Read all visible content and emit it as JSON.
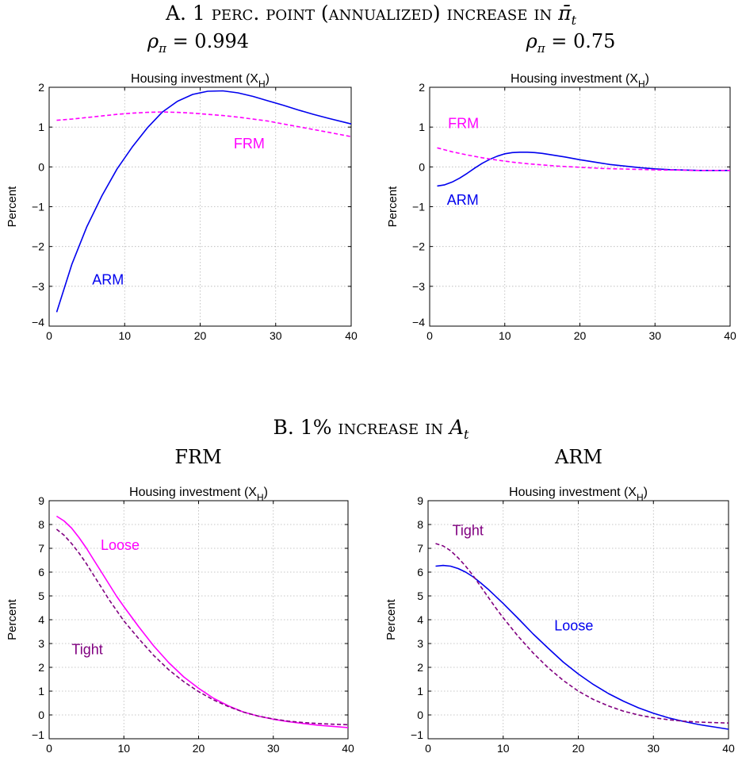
{
  "panel_a": {
    "title_prefix": "A. 1 ",
    "title_sc": "perc. point (annualized) increase in ",
    "title_symbol": "π̄",
    "title_sub": "t",
    "left_sub_rho": "ρ",
    "left_sub_index": "π",
    "left_sub_value": " = 0.994",
    "right_sub_rho": "ρ",
    "right_sub_index": "π",
    "right_sub_value": " = 0.75"
  },
  "panel_b": {
    "title_prefix": "B. 1% ",
    "title_sc": "increase in ",
    "title_symbol": "A",
    "title_sub": "t",
    "left_sub": "FRM",
    "right_sub": "ARM"
  },
  "colors": {
    "magenta": "#ff00ff",
    "blue": "#0000ee",
    "purple": "#800080",
    "grid": "#bbbbbb"
  },
  "chart_data": [
    {
      "type": "line",
      "title": "Housing investment (X_H)",
      "title_main": "Housing investment (X",
      "title_subscript": "H",
      "title_close": ")",
      "ylabel": "Percent",
      "xlim": [
        0,
        40
      ],
      "ylim": [
        -4,
        2
      ],
      "xticks": [
        0,
        10,
        20,
        30,
        40
      ],
      "yticks": [
        -4,
        -3,
        -2,
        -1,
        0,
        1,
        2
      ],
      "grid": true,
      "series": [
        {
          "name": "ARM",
          "color": "#0000ee",
          "dash": false,
          "x": [
            1,
            3,
            5,
            7,
            9,
            11,
            13,
            15,
            17,
            19,
            21,
            23,
            25,
            27,
            29,
            31,
            33,
            35,
            37,
            40
          ],
          "y": [
            -3.65,
            -2.45,
            -1.5,
            -0.72,
            -0.05,
            0.5,
            0.98,
            1.38,
            1.65,
            1.82,
            1.9,
            1.91,
            1.86,
            1.77,
            1.66,
            1.55,
            1.43,
            1.32,
            1.22,
            1.08
          ]
        },
        {
          "name": "FRM",
          "color": "#ff00ff",
          "dash": true,
          "x": [
            1,
            3,
            5,
            7,
            9,
            11,
            13,
            15,
            17,
            19,
            21,
            23,
            25,
            27,
            29,
            31,
            33,
            35,
            37,
            40
          ],
          "y": [
            1.17,
            1.2,
            1.24,
            1.28,
            1.32,
            1.35,
            1.37,
            1.38,
            1.37,
            1.35,
            1.32,
            1.29,
            1.25,
            1.2,
            1.15,
            1.08,
            1.01,
            0.94,
            0.87,
            0.76
          ]
        }
      ],
      "annotations": [
        {
          "text": "ARM",
          "x": 7.8,
          "y": -2.95,
          "color": "#0000ee"
        },
        {
          "text": "FRM",
          "x": 26.5,
          "y": 0.47,
          "color": "#ff00ff"
        }
      ]
    },
    {
      "type": "line",
      "title": "Housing investment (X_H)",
      "title_main": "Housing investment (X",
      "title_subscript": "H",
      "title_close": ")",
      "ylabel": "Percent",
      "xlim": [
        0,
        40
      ],
      "ylim": [
        -4,
        2
      ],
      "xticks": [
        0,
        10,
        20,
        30,
        40
      ],
      "yticks": [
        -4,
        -3,
        -2,
        -1,
        0,
        1,
        2
      ],
      "grid": true,
      "series": [
        {
          "name": "ARM",
          "color": "#0000ee",
          "dash": false,
          "x": [
            1,
            2,
            3,
            4,
            5,
            6,
            7,
            8,
            9,
            10,
            11,
            12,
            13,
            14,
            15,
            16,
            18,
            20,
            22,
            24,
            26,
            28,
            30,
            32,
            34,
            36,
            38,
            40
          ],
          "y": [
            -0.48,
            -0.45,
            -0.38,
            -0.28,
            -0.16,
            -0.03,
            0.09,
            0.19,
            0.27,
            0.33,
            0.36,
            0.37,
            0.37,
            0.36,
            0.34,
            0.31,
            0.25,
            0.18,
            0.12,
            0.06,
            0.02,
            -0.02,
            -0.05,
            -0.07,
            -0.08,
            -0.09,
            -0.09,
            -0.09
          ]
        },
        {
          "name": "FRM",
          "color": "#ff00ff",
          "dash": true,
          "x": [
            1,
            3,
            5,
            7,
            9,
            11,
            13,
            15,
            17,
            19,
            21,
            23,
            25,
            27,
            29,
            31,
            33,
            35,
            37,
            40
          ],
          "y": [
            0.48,
            0.38,
            0.3,
            0.23,
            0.17,
            0.12,
            0.08,
            0.05,
            0.02,
            0.0,
            -0.02,
            -0.04,
            -0.05,
            -0.06,
            -0.07,
            -0.08,
            -0.08,
            -0.09,
            -0.09,
            -0.09
          ]
        }
      ],
      "annotations": [
        {
          "text": "FRM",
          "x": 4.5,
          "y": 0.97,
          "color": "#ff00ff"
        },
        {
          "text": "ARM",
          "x": 4.4,
          "y": -0.95,
          "color": "#0000ee"
        }
      ]
    },
    {
      "type": "line",
      "title": "Housing investment (X_H)",
      "title_main": "Housing investment (X",
      "title_subscript": "H",
      "title_close": ")",
      "ylabel": "Percent",
      "xlim": [
        0,
        40
      ],
      "ylim": [
        -1,
        9
      ],
      "xticks": [
        0,
        10,
        20,
        30,
        40
      ],
      "yticks": [
        -1,
        0,
        1,
        2,
        3,
        4,
        5,
        6,
        7,
        8,
        9
      ],
      "grid": true,
      "series": [
        {
          "name": "Loose",
          "color": "#ff00ff",
          "dash": false,
          "x": [
            1,
            2,
            3,
            4,
            5,
            6,
            7,
            8,
            9,
            10,
            12,
            14,
            16,
            18,
            20,
            22,
            24,
            26,
            28,
            30,
            32,
            34,
            36,
            38,
            40
          ],
          "y": [
            8.35,
            8.15,
            7.85,
            7.45,
            7.0,
            6.5,
            6.0,
            5.5,
            5.0,
            4.55,
            3.7,
            2.9,
            2.2,
            1.6,
            1.12,
            0.7,
            0.38,
            0.12,
            -0.05,
            -0.18,
            -0.28,
            -0.36,
            -0.43,
            -0.48,
            -0.53
          ]
        },
        {
          "name": "Tight",
          "color": "#800080",
          "dash": true,
          "x": [
            1,
            2,
            3,
            4,
            5,
            6,
            7,
            8,
            9,
            10,
            12,
            14,
            16,
            18,
            20,
            22,
            24,
            26,
            28,
            30,
            32,
            34,
            36,
            38,
            40
          ],
          "y": [
            7.8,
            7.55,
            7.2,
            6.8,
            6.35,
            5.85,
            5.35,
            4.85,
            4.4,
            3.95,
            3.2,
            2.5,
            1.9,
            1.4,
            0.98,
            0.63,
            0.35,
            0.12,
            -0.05,
            -0.17,
            -0.26,
            -0.32,
            -0.36,
            -0.39,
            -0.41
          ]
        }
      ],
      "annotations": [
        {
          "text": "Loose",
          "x": 9.5,
          "y": 6.93,
          "color": "#ff00ff"
        },
        {
          "text": "Tight",
          "x": 5.1,
          "y": 2.55,
          "color": "#800080"
        }
      ]
    },
    {
      "type": "line",
      "title": "Housing investment (X_H)",
      "title_main": "Housing investment (X",
      "title_subscript": "H",
      "title_close": ")",
      "ylabel": "Percent",
      "xlim": [
        0,
        40
      ],
      "ylim": [
        -1,
        9
      ],
      "xticks": [
        0,
        10,
        20,
        30,
        40
      ],
      "yticks": [
        -1,
        0,
        1,
        2,
        3,
        4,
        5,
        6,
        7,
        8,
        9
      ],
      "grid": true,
      "series": [
        {
          "name": "Loose",
          "color": "#0000ee",
          "dash": false,
          "x": [
            1,
            2,
            3,
            4,
            5,
            6,
            7,
            8,
            9,
            10,
            12,
            14,
            16,
            18,
            20,
            22,
            24,
            26,
            28,
            30,
            32,
            34,
            36,
            38,
            40
          ],
          "y": [
            6.25,
            6.28,
            6.25,
            6.15,
            6.0,
            5.8,
            5.55,
            5.28,
            4.98,
            4.68,
            4.05,
            3.4,
            2.8,
            2.22,
            1.72,
            1.28,
            0.9,
            0.58,
            0.3,
            0.07,
            -0.12,
            -0.27,
            -0.4,
            -0.5,
            -0.6
          ]
        },
        {
          "name": "Tight",
          "color": "#800080",
          "dash": true,
          "x": [
            1,
            2,
            3,
            4,
            5,
            6,
            7,
            8,
            9,
            10,
            12,
            14,
            16,
            18,
            20,
            22,
            24,
            26,
            28,
            30,
            32,
            34,
            36,
            38,
            40
          ],
          "y": [
            7.2,
            7.1,
            6.9,
            6.6,
            6.25,
            5.85,
            5.4,
            4.95,
            4.5,
            4.08,
            3.3,
            2.6,
            1.98,
            1.45,
            1.0,
            0.65,
            0.38,
            0.16,
            0.0,
            -0.12,
            -0.2,
            -0.26,
            -0.3,
            -0.32,
            -0.34
          ]
        }
      ],
      "annotations": [
        {
          "text": "Tight",
          "x": 5.3,
          "y": 7.55,
          "color": "#800080"
        },
        {
          "text": "Loose",
          "x": 19.4,
          "y": 3.55,
          "color": "#0000ee"
        }
      ]
    }
  ]
}
